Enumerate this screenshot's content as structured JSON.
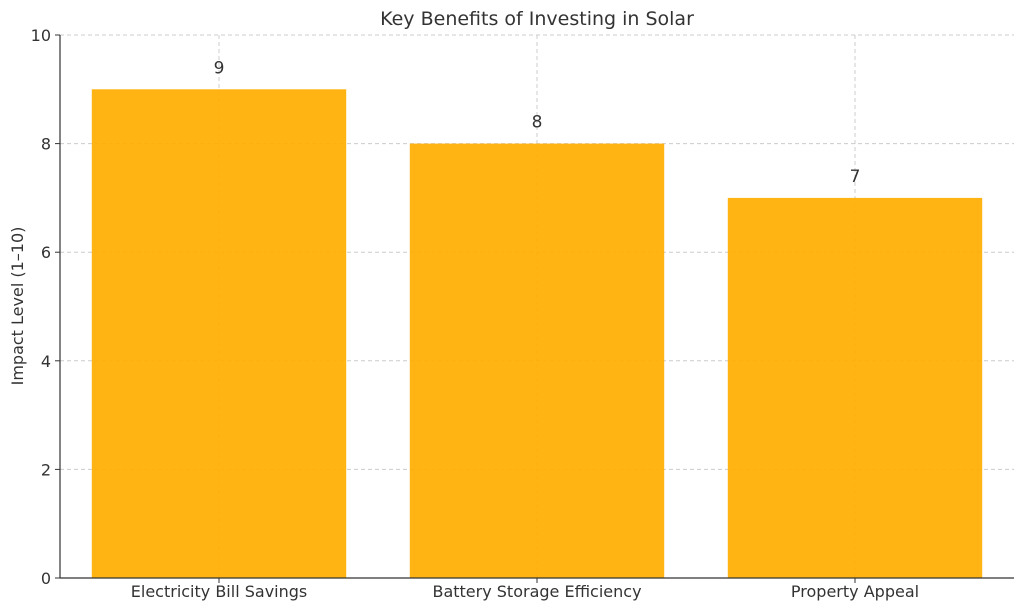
{
  "chart_data": {
    "type": "bar",
    "title": "Key Benefits of Investing in Solar",
    "xlabel": "",
    "ylabel": "Impact Level (1–10)",
    "categories": [
      "Electricity Bill Savings",
      "Battery Storage Efficiency",
      "Property Appeal"
    ],
    "values": [
      9,
      8,
      7
    ],
    "value_labels": [
      "9",
      "8",
      "7"
    ],
    "ylim": [
      0,
      10
    ],
    "yticks": [
      0,
      2,
      4,
      6,
      8,
      10
    ],
    "grid": true,
    "legend": "none",
    "bar_color": "#FFAE00"
  }
}
